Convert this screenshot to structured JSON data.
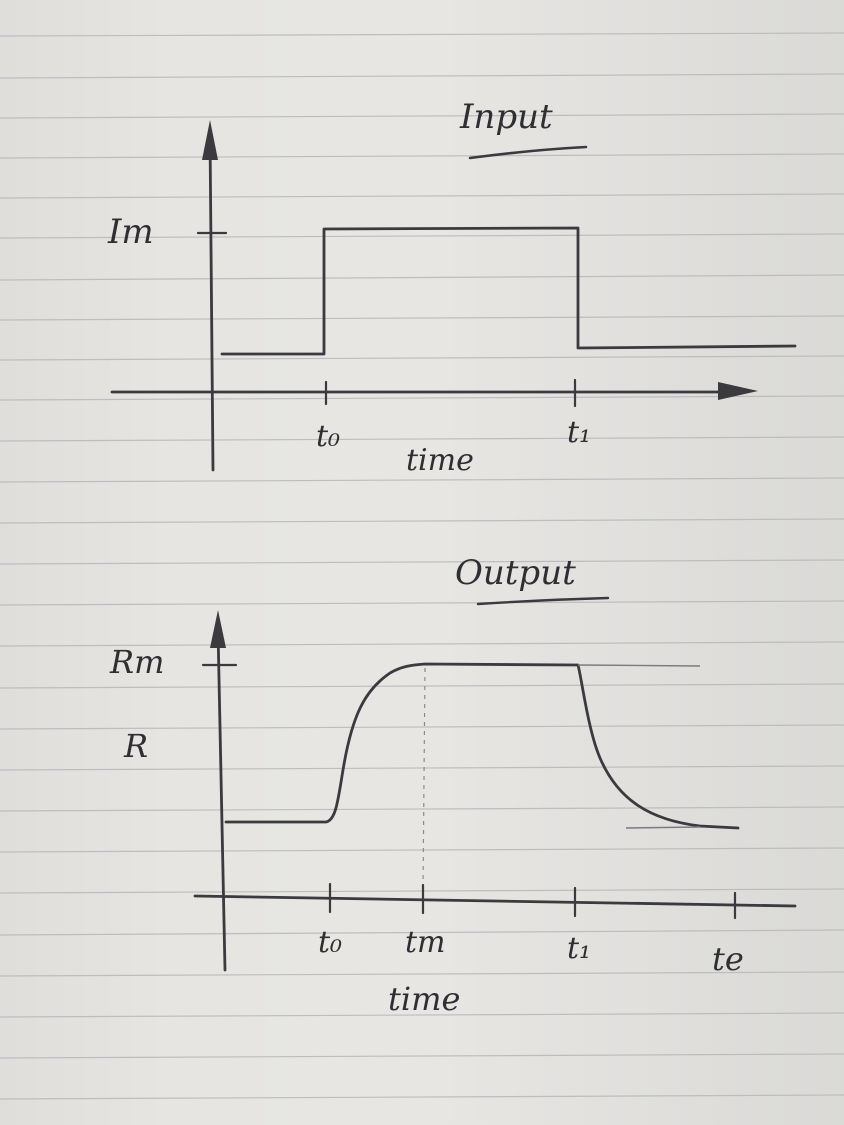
{
  "input_panel": {
    "title": "Input",
    "y_tick_label": "Im",
    "x_tick_labels": [
      "t₀",
      "t₁"
    ],
    "x_axis_label": "time"
  },
  "output_panel": {
    "title": "Output",
    "y_tick_labels": [
      "Rm",
      "R"
    ],
    "x_tick_labels": [
      "t₀",
      "tm",
      "t₁",
      "te"
    ],
    "x_axis_label": "time"
  },
  "colors": {
    "ink": "#3a3a3f",
    "paper": "#e6e5e2",
    "ruled_line": "#b8b8bc"
  }
}
